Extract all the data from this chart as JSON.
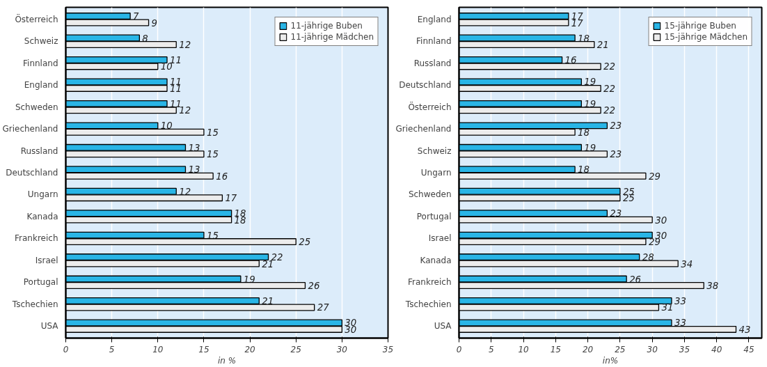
{
  "chart_data": [
    {
      "type": "bar",
      "orientation": "horizontal",
      "xlabel": "in %",
      "categories": [
        "Österreich",
        "Schweiz",
        "Finnland",
        "England",
        "Schweden",
        "Griechenland",
        "Russland",
        "Deutschland",
        "Ungarn",
        "Kanada",
        "Frankreich",
        "Israel",
        "Portugal",
        "Tschechien",
        "USA"
      ],
      "series": [
        {
          "name": "11-jährige Buben",
          "color": "#29b5e6",
          "values": [
            7,
            8,
            11,
            11,
            11,
            10,
            13,
            13,
            12,
            18,
            15,
            22,
            19,
            21,
            30
          ]
        },
        {
          "name": "11-jährige Mädchen",
          "color": "#ececec",
          "values": [
            9,
            12,
            10,
            11,
            12,
            15,
            15,
            16,
            17,
            18,
            25,
            21,
            26,
            27,
            30
          ]
        }
      ],
      "xlim": [
        0,
        35
      ],
      "xticks": [
        0,
        5,
        10,
        15,
        20,
        25,
        30,
        35
      ],
      "grid": "x",
      "legend": "top right",
      "data_labels": true
    },
    {
      "type": "bar",
      "orientation": "horizontal",
      "xlabel": "in%",
      "categories": [
        "England",
        "Finnland",
        "Russland",
        "Deutschland",
        "Österreich",
        "Griechenland",
        "Schweiz",
        "Ungarn",
        "Schweden",
        "Portugal",
        "Israel",
        "Kanada",
        "Frankreich",
        "Tschechien",
        "USA"
      ],
      "series": [
        {
          "name": "15-jährige Buben",
          "color": "#29b5e6",
          "values": [
            17,
            18,
            16,
            19,
            19,
            23,
            19,
            18,
            25,
            23,
            30,
            28,
            26,
            33,
            33
          ]
        },
        {
          "name": "15-jährige Mädchen",
          "color": "#ececec",
          "values": [
            17,
            21,
            22,
            22,
            22,
            18,
            23,
            29,
            25,
            30,
            29,
            34,
            38,
            31,
            43
          ]
        }
      ],
      "xlim": [
        0,
        47
      ],
      "xticks": [
        0,
        5,
        10,
        15,
        20,
        25,
        30,
        35,
        40,
        45
      ],
      "grid": "x",
      "legend": "top right",
      "data_labels": true
    }
  ]
}
